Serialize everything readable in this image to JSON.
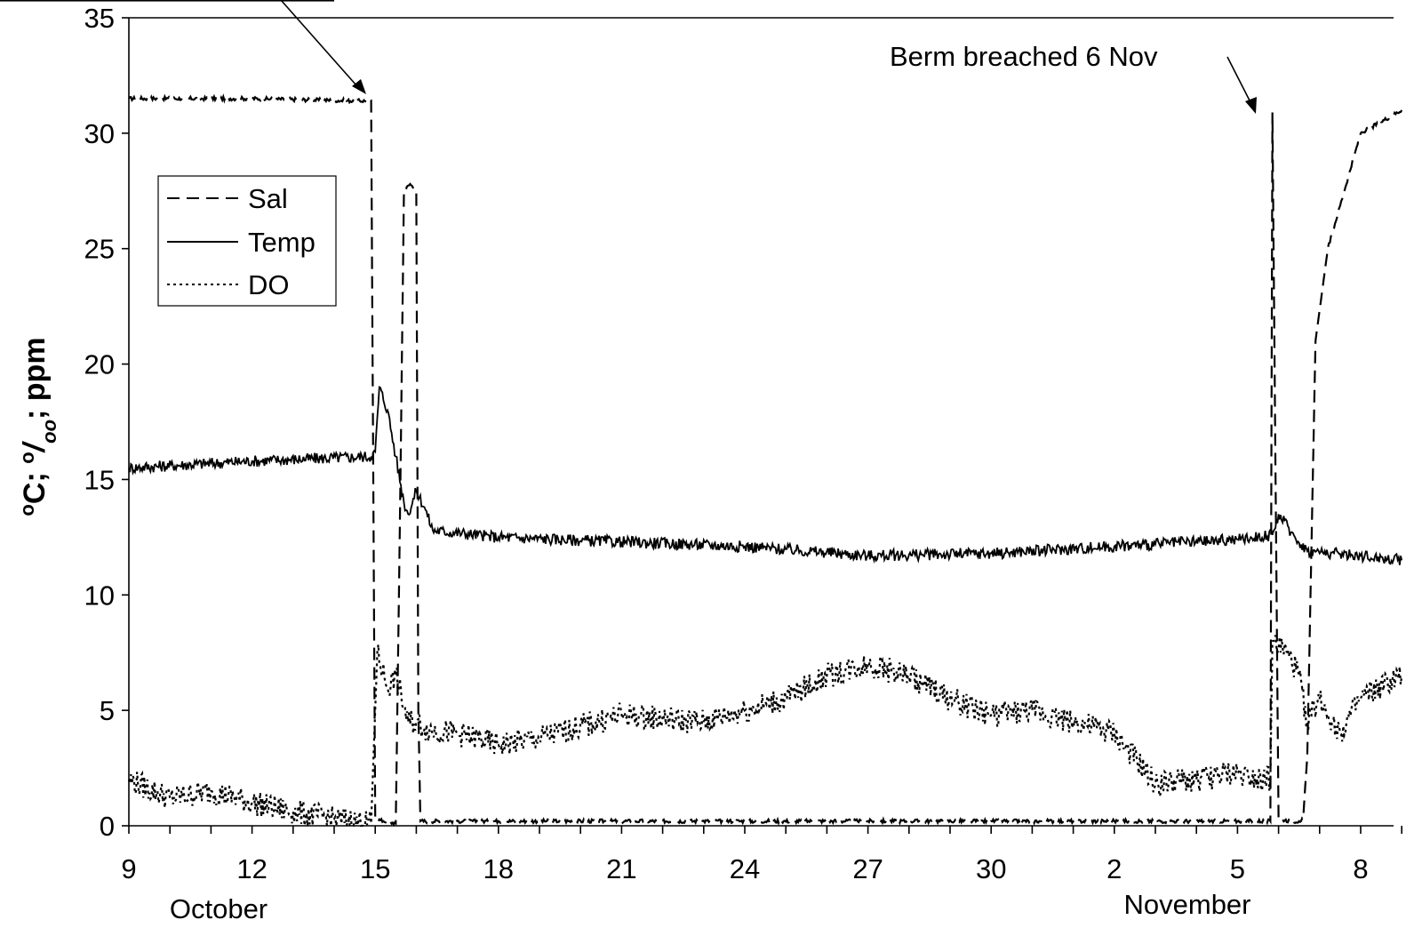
{
  "chart_data": {
    "type": "line",
    "title": "",
    "xlabel": "",
    "ylabel": {
      "p1": "o",
      "p2": "C; ",
      "p3": "o",
      "p4": "/",
      "p5": "oo",
      "p6": "; ppm",
      "full": "oC; o/oo; ppm"
    },
    "ylim": [
      0,
      35
    ],
    "xlim_days": [
      0,
      31
    ],
    "x_ticks": [
      "9",
      "12",
      "15",
      "18",
      "21",
      "24",
      "27",
      "30",
      "2",
      "5",
      "8"
    ],
    "y_ticks": [
      "0",
      "5",
      "10",
      "15",
      "20",
      "25",
      "30",
      "35"
    ],
    "months": [
      "October",
      "November"
    ],
    "grid": false,
    "legend_placement": "upper-left",
    "annotations": [
      {
        "text": "Berm breached 6 Nov"
      }
    ],
    "series": [
      {
        "name": "Sal",
        "style": "dashed",
        "x": [
          "Oct 9",
          "Oct 12",
          "Oct 14.5",
          "Oct 14.9",
          "Oct 15.0",
          "Oct 15.2",
          "Oct 15.5",
          "Oct 15.6",
          "Oct 15.7",
          "Oct 15.85",
          "Oct 16.0",
          "Oct 16.05",
          "Oct 16.1",
          "Oct 16.3",
          "Oct 17",
          "Oct 18",
          "Oct 21",
          "Oct 24",
          "Oct 27",
          "Oct 30",
          "Nov 2",
          "Nov 5",
          "Nov 5.8",
          "Nov 5.85",
          "Nov 6.0",
          "Nov 6.3",
          "Nov 6.5",
          "Nov 6.6",
          "Nov 6.7",
          "Nov 6.9",
          "Nov 7.2",
          "Nov 8",
          "Nov 9"
        ],
        "y": [
          31.5,
          31.5,
          31.4,
          31.4,
          0.3,
          0.2,
          0.1,
          13.0,
          27.5,
          27.8,
          27.5,
          5.0,
          0.2,
          0.2,
          0.2,
          0.2,
          0.2,
          0.2,
          0.2,
          0.2,
          0.2,
          0.2,
          0.2,
          30.9,
          0.3,
          0.2,
          0.2,
          0.3,
          3.0,
          21.0,
          25.0,
          30.0,
          31.0
        ]
      },
      {
        "name": "Temp",
        "style": "solid",
        "x": [
          "Oct 9",
          "Oct 12",
          "Oct 14.9",
          "Oct 15.0",
          "Oct 15.1",
          "Oct 15.3",
          "Oct 15.5",
          "Oct 15.7",
          "Oct 15.8",
          "Oct 16.0",
          "Oct 16.2",
          "Oct 16.4",
          "Oct 18",
          "Oct 21",
          "Oct 24",
          "Oct 27",
          "Oct 30",
          "Nov 2",
          "Nov 5",
          "Nov 5.85",
          "Nov 6.0",
          "Nov 6.4",
          "Nov 6.7",
          "Nov 8",
          "Nov 9"
        ],
        "y": [
          15.5,
          15.8,
          16.0,
          16.2,
          19.0,
          18.0,
          16.0,
          14.0,
          13.5,
          14.5,
          13.8,
          12.8,
          12.5,
          12.3,
          12.1,
          11.7,
          11.8,
          12.1,
          12.4,
          12.6,
          13.5,
          12.5,
          11.9,
          11.7,
          11.5
        ]
      },
      {
        "name": "DO",
        "style": "dotted",
        "x": [
          "Oct 9",
          "Oct 10",
          "Oct 11",
          "Oct 12",
          "Oct 13",
          "Oct 14",
          "Oct 14.9",
          "Oct 15.05",
          "Oct 15.3",
          "Oct 15.5",
          "Oct 15.8",
          "Oct 16.0",
          "Oct 16.2",
          "Oct 17",
          "Oct 18",
          "Oct 19",
          "Oct 21",
          "Oct 23",
          "Oct 24",
          "Oct 25",
          "Oct 26",
          "Oct 27",
          "Oct 28",
          "Oct 29",
          "Oct 30",
          "Oct 31",
          "Nov 1",
          "Nov 2",
          "Nov 3",
          "Nov 4",
          "Nov 5",
          "Nov 5.8",
          "Nov 5.85",
          "Nov 6.2",
          "Nov 6.5",
          "Nov 6.7",
          "Nov 7",
          "Nov 7.5",
          "Nov 8",
          "Nov 9"
        ],
        "y": [
          2.0,
          1.2,
          1.5,
          1.0,
          0.6,
          0.3,
          0.1,
          7.5,
          6.0,
          6.5,
          4.5,
          4.5,
          4.2,
          4.0,
          3.5,
          3.8,
          4.8,
          4.5,
          5.0,
          5.5,
          6.5,
          7.0,
          6.5,
          5.5,
          4.8,
          5.0,
          4.5,
          4.0,
          1.8,
          2.0,
          2.3,
          2.0,
          8.0,
          7.5,
          6.5,
          4.5,
          5.5,
          4.0,
          5.5,
          6.5
        ]
      }
    ]
  }
}
